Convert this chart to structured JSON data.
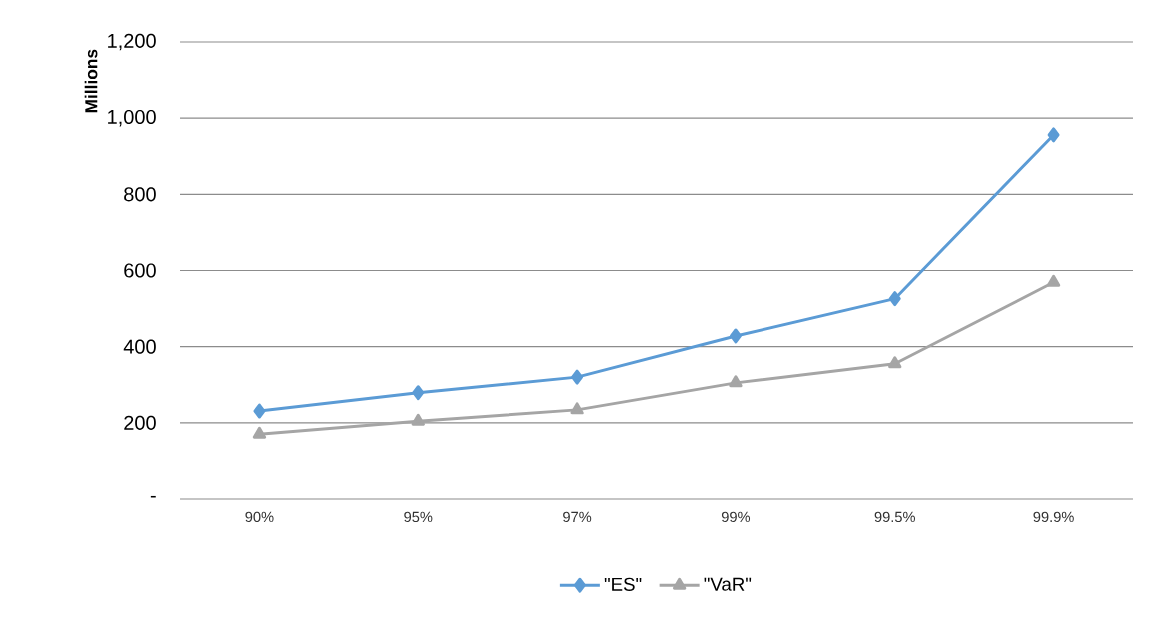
{
  "chart_data": {
    "type": "line",
    "ylabel": "Millions",
    "categories": [
      "90%",
      "95%",
      "97%",
      "99%",
      "99.5%",
      "99.9%"
    ],
    "series": [
      {
        "name": "\"ES\"",
        "color": "#5b9bd5",
        "marker": "diamond",
        "values": [
          231,
          279,
          320,
          428,
          526,
          956
        ]
      },
      {
        "name": "\"VaR\"",
        "color": "#a5a5a5",
        "marker": "triangle",
        "values": [
          170,
          204,
          234,
          305,
          355,
          569
        ]
      }
    ],
    "ylim": [
      0,
      1200
    ],
    "yticks": [
      {
        "value": 0,
        "label": "-"
      },
      {
        "value": 200,
        "label": "200"
      },
      {
        "value": 400,
        "label": "400"
      },
      {
        "value": 600,
        "label": "600"
      },
      {
        "value": 800,
        "label": "800"
      },
      {
        "value": 1000,
        "label": "1,000"
      },
      {
        "value": 1200,
        "label": "1,200"
      }
    ],
    "grid": "y",
    "legend": "bottom"
  }
}
